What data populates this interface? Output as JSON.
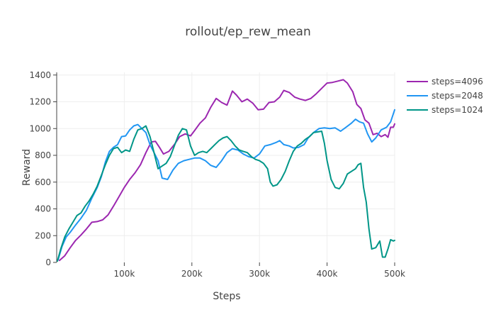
{
  "chart_data": {
    "type": "line",
    "title": "rollout/ep_rew_mean",
    "xlabel": "Steps",
    "ylabel": "Reward",
    "xlim": [
      0,
      500000
    ],
    "ylim": [
      0,
      1420
    ],
    "grid": true,
    "legend_position": "top-right",
    "x_ticks": [
      {
        "value": 100000,
        "label": "100k"
      },
      {
        "value": 200000,
        "label": "200k"
      },
      {
        "value": 300000,
        "label": "300k"
      },
      {
        "value": 400000,
        "label": "400k"
      },
      {
        "value": 500000,
        "label": "500k"
      }
    ],
    "y_ticks": [
      {
        "value": 0,
        "label": "0"
      },
      {
        "value": 200,
        "label": "200"
      },
      {
        "value": 400,
        "label": "400"
      },
      {
        "value": 600,
        "label": "600"
      },
      {
        "value": 800,
        "label": "800"
      },
      {
        "value": 1000,
        "label": "1000"
      },
      {
        "value": 1200,
        "label": "1200"
      },
      {
        "value": 1400,
        "label": "1400"
      }
    ],
    "series": [
      {
        "name": "steps=4096",
        "color": "#9c27b0",
        "points": [
          [
            4096,
            15
          ],
          [
            12000,
            50
          ],
          [
            20000,
            110
          ],
          [
            28000,
            165
          ],
          [
            36000,
            205
          ],
          [
            44000,
            250
          ],
          [
            52000,
            300
          ],
          [
            60000,
            305
          ],
          [
            68000,
            318
          ],
          [
            76000,
            355
          ],
          [
            84000,
            420
          ],
          [
            92000,
            490
          ],
          [
            100000,
            560
          ],
          [
            108000,
            620
          ],
          [
            116000,
            670
          ],
          [
            124000,
            730
          ],
          [
            132000,
            820
          ],
          [
            140000,
            900
          ],
          [
            146000,
            905
          ],
          [
            152000,
            860
          ],
          [
            158000,
            810
          ],
          [
            166000,
            830
          ],
          [
            174000,
            880
          ],
          [
            182000,
            940
          ],
          [
            190000,
            960
          ],
          [
            198000,
            945
          ],
          [
            204000,
            985
          ],
          [
            212000,
            1040
          ],
          [
            220000,
            1080
          ],
          [
            228000,
            1160
          ],
          [
            236000,
            1225
          ],
          [
            244000,
            1195
          ],
          [
            252000,
            1175
          ],
          [
            260000,
            1280
          ],
          [
            266000,
            1250
          ],
          [
            274000,
            1200
          ],
          [
            282000,
            1220
          ],
          [
            290000,
            1190
          ],
          [
            298000,
            1140
          ],
          [
            306000,
            1145
          ],
          [
            314000,
            1195
          ],
          [
            322000,
            1200
          ],
          [
            330000,
            1235
          ],
          [
            336000,
            1285
          ],
          [
            344000,
            1270
          ],
          [
            352000,
            1235
          ],
          [
            360000,
            1220
          ],
          [
            368000,
            1210
          ],
          [
            376000,
            1225
          ],
          [
            384000,
            1260
          ],
          [
            392000,
            1300
          ],
          [
            400000,
            1340
          ],
          [
            408000,
            1345
          ],
          [
            416000,
            1355
          ],
          [
            424000,
            1365
          ],
          [
            430000,
            1340
          ],
          [
            438000,
            1275
          ],
          [
            444000,
            1180
          ],
          [
            450000,
            1150
          ],
          [
            456000,
            1065
          ],
          [
            462000,
            1040
          ],
          [
            468000,
            955
          ],
          [
            474000,
            965
          ],
          [
            480000,
            940
          ],
          [
            486000,
            955
          ],
          [
            490000,
            935
          ],
          [
            494000,
            1010
          ],
          [
            498000,
            1010
          ],
          [
            500000,
            1035
          ]
        ]
      },
      {
        "name": "steps=2048",
        "color": "#2196f3",
        "points": [
          [
            2048,
            20
          ],
          [
            8000,
            120
          ],
          [
            14000,
            190
          ],
          [
            20000,
            225
          ],
          [
            28000,
            280
          ],
          [
            36000,
            330
          ],
          [
            44000,
            390
          ],
          [
            52000,
            480
          ],
          [
            60000,
            560
          ],
          [
            66000,
            640
          ],
          [
            72000,
            750
          ],
          [
            78000,
            830
          ],
          [
            84000,
            860
          ],
          [
            90000,
            880
          ],
          [
            96000,
            940
          ],
          [
            102000,
            945
          ],
          [
            108000,
            990
          ],
          [
            114000,
            1020
          ],
          [
            120000,
            1030
          ],
          [
            126000,
            1000
          ],
          [
            132000,
            970
          ],
          [
            138000,
            880
          ],
          [
            144000,
            820
          ],
          [
            150000,
            760
          ],
          [
            156000,
            630
          ],
          [
            164000,
            620
          ],
          [
            172000,
            690
          ],
          [
            180000,
            740
          ],
          [
            188000,
            760
          ],
          [
            196000,
            770
          ],
          [
            204000,
            780
          ],
          [
            212000,
            780
          ],
          [
            220000,
            760
          ],
          [
            228000,
            725
          ],
          [
            236000,
            710
          ],
          [
            244000,
            760
          ],
          [
            252000,
            820
          ],
          [
            260000,
            850
          ],
          [
            268000,
            840
          ],
          [
            276000,
            810
          ],
          [
            284000,
            790
          ],
          [
            292000,
            780
          ],
          [
            300000,
            810
          ],
          [
            308000,
            870
          ],
          [
            316000,
            880
          ],
          [
            324000,
            895
          ],
          [
            330000,
            910
          ],
          [
            336000,
            880
          ],
          [
            344000,
            870
          ],
          [
            350000,
            855
          ],
          [
            358000,
            860
          ],
          [
            366000,
            880
          ],
          [
            372000,
            930
          ],
          [
            380000,
            970
          ],
          [
            388000,
            1000
          ],
          [
            396000,
            1005
          ],
          [
            404000,
            1000
          ],
          [
            412000,
            1005
          ],
          [
            420000,
            980
          ],
          [
            428000,
            1010
          ],
          [
            436000,
            1040
          ],
          [
            442000,
            1070
          ],
          [
            448000,
            1050
          ],
          [
            454000,
            1040
          ],
          [
            460000,
            960
          ],
          [
            466000,
            900
          ],
          [
            472000,
            930
          ],
          [
            480000,
            990
          ],
          [
            488000,
            1010
          ],
          [
            494000,
            1050
          ],
          [
            500000,
            1140
          ]
        ]
      },
      {
        "name": "steps=1024",
        "color": "#009688",
        "points": [
          [
            1024,
            10
          ],
          [
            6000,
            100
          ],
          [
            12000,
            190
          ],
          [
            18000,
            250
          ],
          [
            24000,
            300
          ],
          [
            30000,
            350
          ],
          [
            36000,
            370
          ],
          [
            42000,
            420
          ],
          [
            48000,
            460
          ],
          [
            54000,
            510
          ],
          [
            60000,
            570
          ],
          [
            66000,
            650
          ],
          [
            72000,
            730
          ],
          [
            78000,
            800
          ],
          [
            84000,
            850
          ],
          [
            90000,
            860
          ],
          [
            96000,
            820
          ],
          [
            102000,
            840
          ],
          [
            108000,
            830
          ],
          [
            114000,
            920
          ],
          [
            120000,
            990
          ],
          [
            126000,
            1000
          ],
          [
            132000,
            1020
          ],
          [
            138000,
            940
          ],
          [
            144000,
            820
          ],
          [
            150000,
            700
          ],
          [
            156000,
            720
          ],
          [
            162000,
            740
          ],
          [
            168000,
            790
          ],
          [
            174000,
            870
          ],
          [
            180000,
            950
          ],
          [
            186000,
            1000
          ],
          [
            192000,
            990
          ],
          [
            198000,
            870
          ],
          [
            204000,
            800
          ],
          [
            210000,
            820
          ],
          [
            216000,
            830
          ],
          [
            222000,
            820
          ],
          [
            228000,
            850
          ],
          [
            234000,
            880
          ],
          [
            240000,
            910
          ],
          [
            246000,
            930
          ],
          [
            252000,
            940
          ],
          [
            258000,
            910
          ],
          [
            264000,
            870
          ],
          [
            270000,
            840
          ],
          [
            276000,
            830
          ],
          [
            282000,
            820
          ],
          [
            288000,
            790
          ],
          [
            294000,
            770
          ],
          [
            300000,
            760
          ],
          [
            306000,
            740
          ],
          [
            312000,
            700
          ],
          [
            316000,
            600
          ],
          [
            320000,
            570
          ],
          [
            326000,
            580
          ],
          [
            332000,
            620
          ],
          [
            338000,
            680
          ],
          [
            344000,
            760
          ],
          [
            350000,
            830
          ],
          [
            356000,
            870
          ],
          [
            362000,
            890
          ],
          [
            368000,
            920
          ],
          [
            374000,
            940
          ],
          [
            380000,
            970
          ],
          [
            386000,
            975
          ],
          [
            392000,
            980
          ],
          [
            396000,
            890
          ],
          [
            400000,
            760
          ],
          [
            406000,
            620
          ],
          [
            412000,
            560
          ],
          [
            418000,
            550
          ],
          [
            424000,
            590
          ],
          [
            430000,
            660
          ],
          [
            436000,
            680
          ],
          [
            442000,
            700
          ],
          [
            446000,
            730
          ],
          [
            450000,
            740
          ],
          [
            454000,
            560
          ],
          [
            458000,
            450
          ],
          [
            462000,
            250
          ],
          [
            466000,
            100
          ],
          [
            472000,
            110
          ],
          [
            478000,
            160
          ],
          [
            482000,
            40
          ],
          [
            486000,
            40
          ],
          [
            490000,
            100
          ],
          [
            494000,
            170
          ],
          [
            498000,
            160
          ],
          [
            500000,
            165
          ]
        ]
      }
    ]
  }
}
